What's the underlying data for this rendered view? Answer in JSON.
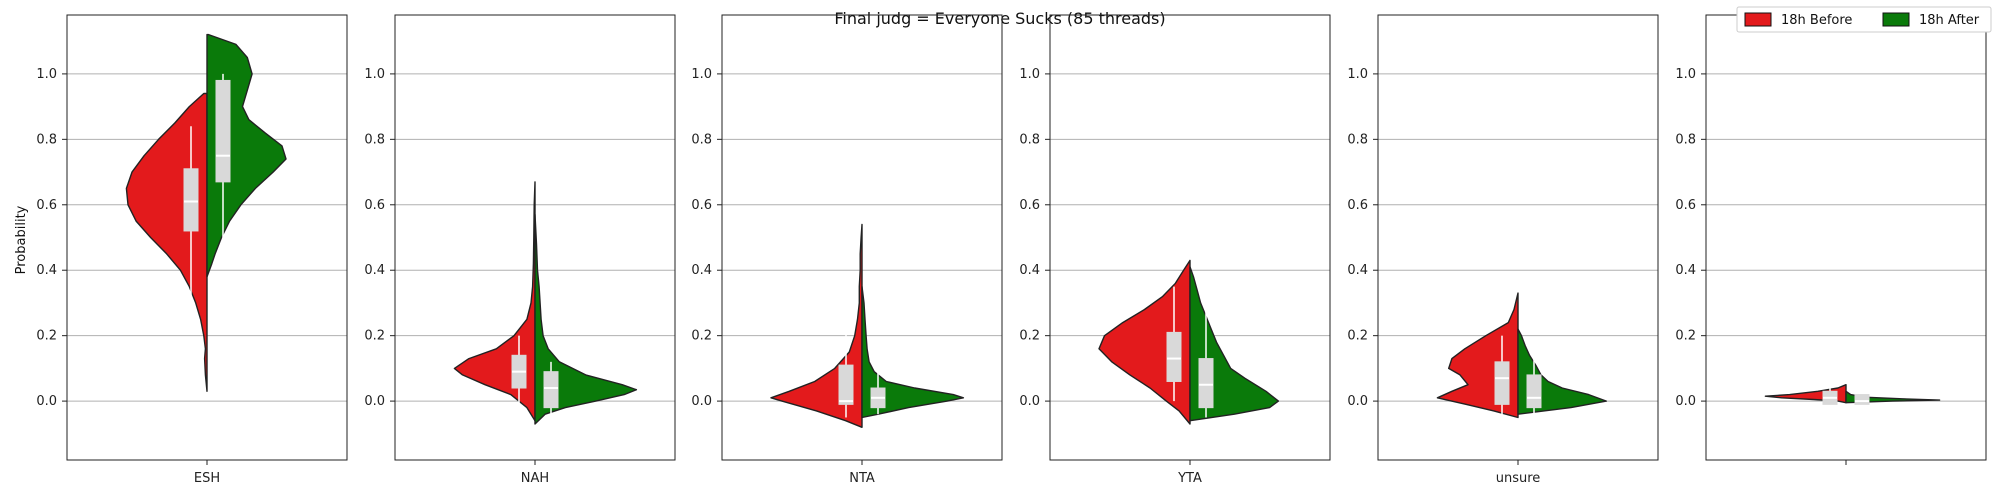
{
  "chart_data": {
    "type": "violin",
    "title": "Final judg = Everyone Sucks (85 threads)",
    "ylabel": "Probability",
    "ylim": [
      -0.18,
      1.18
    ],
    "yticks": [
      0.0,
      0.2,
      0.4,
      0.6,
      0.8,
      1.0
    ],
    "yticklabels": [
      "0.0",
      "0.2",
      "0.4",
      "0.6",
      "0.8",
      "1.0"
    ],
    "grid": "horizontal",
    "legend": {
      "placement": "top-right",
      "entries": [
        {
          "name": "18h Before",
          "color": "#e31a1c"
        },
        {
          "name": "18h After",
          "color": "#0a7a0a"
        }
      ]
    },
    "panels": [
      {
        "category": "ESH",
        "before": {
          "width": 0.62,
          "profile": [
            [
              0.03,
              0.0
            ],
            [
              0.08,
              0.02
            ],
            [
              0.13,
              0.03
            ],
            [
              0.16,
              0.02
            ],
            [
              0.2,
              0.04
            ],
            [
              0.25,
              0.08
            ],
            [
              0.3,
              0.14
            ],
            [
              0.35,
              0.22
            ],
            [
              0.4,
              0.33
            ],
            [
              0.45,
              0.5
            ],
            [
              0.5,
              0.7
            ],
            [
              0.55,
              0.88
            ],
            [
              0.6,
              0.98
            ],
            [
              0.65,
              1.0
            ],
            [
              0.7,
              0.93
            ],
            [
              0.75,
              0.78
            ],
            [
              0.8,
              0.6
            ],
            [
              0.85,
              0.4
            ],
            [
              0.9,
              0.22
            ],
            [
              0.94,
              0.04
            ]
          ],
          "q1": 0.52,
          "median": 0.61,
          "q3": 0.71,
          "whisker_low": 0.24,
          "whisker_high": 0.84
        },
        "after": {
          "width": 0.62,
          "profile": [
            [
              0.38,
              0.0
            ],
            [
              0.42,
              0.06
            ],
            [
              0.45,
              0.1
            ],
            [
              0.5,
              0.18
            ],
            [
              0.55,
              0.28
            ],
            [
              0.6,
              0.42
            ],
            [
              0.65,
              0.6
            ],
            [
              0.7,
              0.82
            ],
            [
              0.74,
              0.98
            ],
            [
              0.78,
              0.93
            ],
            [
              0.82,
              0.72
            ],
            [
              0.86,
              0.52
            ],
            [
              0.9,
              0.44
            ],
            [
              0.95,
              0.5
            ],
            [
              1.0,
              0.56
            ],
            [
              1.05,
              0.5
            ],
            [
              1.09,
              0.36
            ],
            [
              1.12,
              0.02
            ]
          ],
          "q1": 0.67,
          "median": 0.75,
          "q3": 0.98,
          "whisker_low": 0.5,
          "whisker_high": 1.0
        }
      },
      {
        "category": "NAH",
        "before": {
          "width": 0.62,
          "profile": [
            [
              -0.06,
              0.0
            ],
            [
              -0.02,
              0.1
            ],
            [
              0.02,
              0.3
            ],
            [
              0.05,
              0.62
            ],
            [
              0.08,
              0.9
            ],
            [
              0.1,
              1.0
            ],
            [
              0.13,
              0.82
            ],
            [
              0.16,
              0.48
            ],
            [
              0.2,
              0.26
            ],
            [
              0.25,
              0.1
            ],
            [
              0.3,
              0.05
            ],
            [
              0.35,
              0.03
            ],
            [
              0.42,
              0.02
            ],
            [
              0.5,
              0.015
            ],
            [
              0.6,
              0.01
            ],
            [
              0.67,
              0.0
            ]
          ],
          "q1": 0.04,
          "median": 0.09,
          "q3": 0.14,
          "whisker_low": -0.03,
          "whisker_high": 0.2
        },
        "after": {
          "width": 0.78,
          "profile": [
            [
              -0.07,
              0.0
            ],
            [
              -0.04,
              0.1
            ],
            [
              -0.02,
              0.3
            ],
            [
              0.0,
              0.6
            ],
            [
              0.02,
              0.88
            ],
            [
              0.035,
              1.0
            ],
            [
              0.05,
              0.86
            ],
            [
              0.08,
              0.5
            ],
            [
              0.12,
              0.24
            ],
            [
              0.16,
              0.13
            ],
            [
              0.2,
              0.08
            ],
            [
              0.25,
              0.06
            ],
            [
              0.3,
              0.05
            ],
            [
              0.35,
              0.04
            ],
            [
              0.4,
              0.025
            ],
            [
              0.48,
              0.015
            ],
            [
              0.57,
              0.0
            ]
          ],
          "q1": -0.02,
          "median": 0.04,
          "q3": 0.09,
          "whisker_low": -0.06,
          "whisker_high": 0.12
        }
      },
      {
        "category": "NTA",
        "before": {
          "width": 0.7,
          "profile": [
            [
              -0.08,
              0.0
            ],
            [
              -0.06,
              0.18
            ],
            [
              -0.03,
              0.5
            ],
            [
              0.0,
              0.88
            ],
            [
              0.01,
              1.0
            ],
            [
              0.03,
              0.8
            ],
            [
              0.06,
              0.52
            ],
            [
              0.1,
              0.3
            ],
            [
              0.15,
              0.14
            ],
            [
              0.2,
              0.08
            ],
            [
              0.25,
              0.05
            ],
            [
              0.3,
              0.03
            ],
            [
              0.35,
              0.03
            ],
            [
              0.4,
              0.02
            ],
            [
              0.45,
              0.02
            ],
            [
              0.5,
              0.01
            ],
            [
              0.54,
              0.0
            ]
          ],
          "q1": -0.01,
          "median": 0.0,
          "q3": 0.11,
          "whisker_low": -0.05,
          "whisker_high": 0.22
        },
        "after": {
          "width": 0.78,
          "profile": [
            [
              -0.05,
              0.0
            ],
            [
              -0.04,
              0.16
            ],
            [
              -0.02,
              0.46
            ],
            [
              0.0,
              0.84
            ],
            [
              0.01,
              1.0
            ],
            [
              0.02,
              0.9
            ],
            [
              0.04,
              0.52
            ],
            [
              0.06,
              0.24
            ],
            [
              0.09,
              0.12
            ],
            [
              0.12,
              0.07
            ],
            [
              0.16,
              0.05
            ],
            [
              0.2,
              0.04
            ],
            [
              0.25,
              0.03
            ],
            [
              0.3,
              0.02
            ],
            [
              0.35,
              0.0
            ]
          ],
          "q1": -0.02,
          "median": 0.01,
          "q3": 0.04,
          "whisker_low": -0.04,
          "whisker_high": 0.1
        }
      },
      {
        "category": "YTA",
        "before": {
          "width": 0.7,
          "profile": [
            [
              -0.07,
              0.0
            ],
            [
              -0.03,
              0.12
            ],
            [
              0.0,
              0.26
            ],
            [
              0.04,
              0.44
            ],
            [
              0.08,
              0.66
            ],
            [
              0.12,
              0.86
            ],
            [
              0.16,
              1.0
            ],
            [
              0.2,
              0.94
            ],
            [
              0.24,
              0.74
            ],
            [
              0.28,
              0.5
            ],
            [
              0.32,
              0.3
            ],
            [
              0.36,
              0.16
            ],
            [
              0.4,
              0.07
            ],
            [
              0.43,
              0.0
            ]
          ],
          "q1": 0.06,
          "median": 0.13,
          "q3": 0.21,
          "whisker_low": 0.0,
          "whisker_high": 0.35
        },
        "after": {
          "width": 0.68,
          "profile": [
            [
              -0.06,
              0.0
            ],
            [
              -0.04,
              0.5
            ],
            [
              -0.02,
              0.9
            ],
            [
              0.0,
              1.0
            ],
            [
              0.03,
              0.86
            ],
            [
              0.07,
              0.62
            ],
            [
              0.1,
              0.46
            ],
            [
              0.14,
              0.38
            ],
            [
              0.18,
              0.3
            ],
            [
              0.22,
              0.24
            ],
            [
              0.26,
              0.18
            ],
            [
              0.3,
              0.12
            ],
            [
              0.34,
              0.08
            ],
            [
              0.38,
              0.04
            ],
            [
              0.41,
              0.0
            ]
          ],
          "q1": -0.02,
          "median": 0.05,
          "q3": 0.13,
          "whisker_low": -0.05,
          "whisker_high": 0.28
        }
      },
      {
        "category": "unsure",
        "before": {
          "width": 0.62,
          "profile": [
            [
              -0.05,
              0.0
            ],
            [
              -0.03,
              0.3
            ],
            [
              -0.01,
              0.64
            ],
            [
              0.01,
              1.0
            ],
            [
              0.03,
              0.82
            ],
            [
              0.05,
              0.62
            ],
            [
              0.08,
              0.72
            ],
            [
              0.1,
              0.86
            ],
            [
              0.13,
              0.82
            ],
            [
              0.16,
              0.66
            ],
            [
              0.2,
              0.4
            ],
            [
              0.24,
              0.12
            ],
            [
              0.28,
              0.05
            ],
            [
              0.33,
              0.0
            ]
          ],
          "q1": -0.01,
          "median": 0.07,
          "q3": 0.12,
          "whisker_low": -0.04,
          "whisker_high": 0.2
        },
        "after": {
          "width": 0.68,
          "profile": [
            [
              -0.04,
              0.0
            ],
            [
              -0.02,
              0.6
            ],
            [
              0.0,
              1.0
            ],
            [
              0.02,
              0.8
            ],
            [
              0.04,
              0.5
            ],
            [
              0.06,
              0.34
            ],
            [
              0.08,
              0.26
            ],
            [
              0.11,
              0.2
            ],
            [
              0.14,
              0.13
            ],
            [
              0.17,
              0.08
            ],
            [
              0.2,
              0.04
            ],
            [
              0.22,
              0.0
            ]
          ],
          "q1": -0.02,
          "median": 0.01,
          "q3": 0.08,
          "whisker_low": -0.04,
          "whisker_high": 0.14
        }
      },
      {
        "category": "",
        "before": {
          "width": 0.62,
          "profile": [
            [
              -0.005,
              0.0
            ],
            [
              0.0,
              0.1
            ],
            [
              0.005,
              0.4
            ],
            [
              0.01,
              0.8
            ],
            [
              0.015,
              1.0
            ],
            [
              0.02,
              0.7
            ],
            [
              0.03,
              0.35
            ],
            [
              0.04,
              0.1
            ],
            [
              0.05,
              0.0
            ]
          ],
          "q1": -0.01,
          "median": 0.01,
          "q3": 0.03,
          "whisker_low": -0.01,
          "whisker_high": 0.04
        },
        "after": {
          "width": 0.72,
          "profile": [
            [
              -0.005,
              0.0
            ],
            [
              0.0,
              0.5
            ],
            [
              0.003,
              1.0
            ],
            [
              0.007,
              0.6
            ],
            [
              0.012,
              0.2
            ],
            [
              0.02,
              0.05
            ],
            [
              0.03,
              0.0
            ]
          ],
          "q1": -0.01,
          "median": 0.0,
          "q3": 0.02,
          "whisker_low": -0.01,
          "whisker_high": 0.03
        }
      }
    ]
  }
}
